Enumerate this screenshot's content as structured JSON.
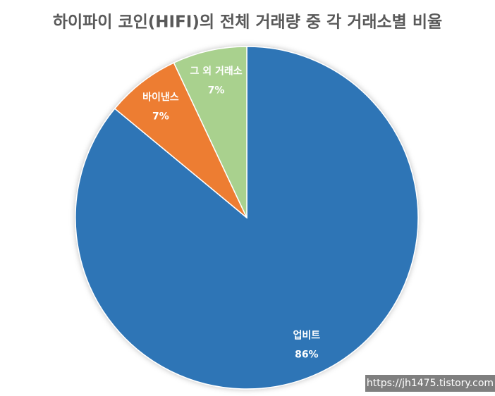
{
  "chart_data": {
    "type": "pie",
    "title": "하이파이 코인(HIFI)의 전체 거래량 중 각 거래소별 비율",
    "categories": [
      "업비트",
      "바이낸스",
      "그 외 거래소"
    ],
    "values": [
      86,
      7,
      7
    ],
    "value_labels": [
      "86%",
      "7%",
      "7%"
    ],
    "colors": [
      "#2e75b6",
      "#ed7d31",
      "#a9d18e"
    ],
    "watermark": "https://jh1475.tistory.com"
  }
}
